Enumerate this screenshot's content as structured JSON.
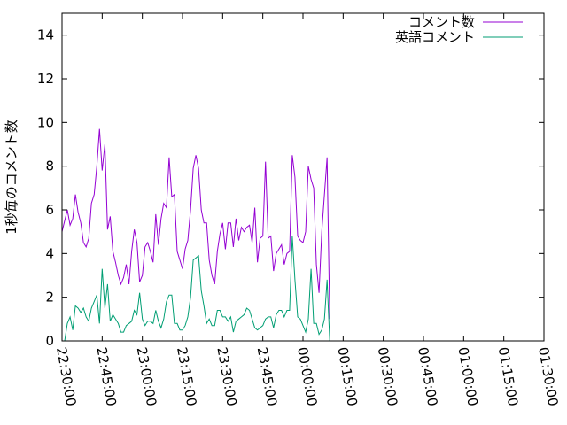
{
  "chart_data": {
    "type": "line",
    "ylabel": "1秒毎のコメント数",
    "xlabel": "",
    "title": "",
    "ylim": [
      0,
      15
    ],
    "xlim": [
      "22:30:00",
      "01:30:00"
    ],
    "grid": false,
    "legend_position": "top-right",
    "y_ticks": [
      "0",
      "2",
      "4",
      "6",
      "8",
      "10",
      "12",
      "14"
    ],
    "y_tick_values": [
      0,
      2,
      4,
      6,
      8,
      10,
      12,
      14
    ],
    "x_ticks": [
      "22:30:00",
      "22:45:00",
      "23:00:00",
      "23:15:00",
      "23:30:00",
      "23:45:00",
      "00:00:00",
      "00:15:00",
      "00:30:00",
      "00:45:00",
      "01:00:00",
      "01:15:00",
      "01:30:00"
    ],
    "x_tick_values": [
      "22:30",
      "22:45",
      "23:00",
      "23:15",
      "23:30",
      "23:45",
      "00:00",
      "00:15",
      "00:30",
      "00:45",
      "01:00",
      "01:15",
      "01:30"
    ],
    "series": [
      {
        "name": "コメント数",
        "color": "#9400d3",
        "points": [
          [
            "22:30",
            5.0
          ],
          [
            "22:31",
            5.5
          ],
          [
            "22:32",
            6.0
          ],
          [
            "22:33",
            5.3
          ],
          [
            "22:34",
            5.6
          ],
          [
            "22:35",
            6.7
          ],
          [
            "22:36",
            5.9
          ],
          [
            "22:37",
            5.4
          ],
          [
            "22:38",
            4.5
          ],
          [
            "22:39",
            4.3
          ],
          [
            "22:40",
            4.7
          ],
          [
            "22:41",
            6.3
          ],
          [
            "22:42",
            6.7
          ],
          [
            "22:43",
            8.0
          ],
          [
            "22:44",
            9.7
          ],
          [
            "22:45",
            7.8
          ],
          [
            "22:46",
            9.0
          ],
          [
            "22:47",
            5.1
          ],
          [
            "22:48",
            5.7
          ],
          [
            "22:49",
            4.1
          ],
          [
            "22:50",
            3.6
          ],
          [
            "22:51",
            3.0
          ],
          [
            "22:52",
            2.6
          ],
          [
            "22:53",
            2.9
          ],
          [
            "22:54",
            3.5
          ],
          [
            "22:55",
            2.6
          ],
          [
            "22:56",
            4.1
          ],
          [
            "22:57",
            5.1
          ],
          [
            "22:58",
            4.5
          ],
          [
            "22:59",
            2.7
          ],
          [
            "23:00",
            3.0
          ],
          [
            "23:01",
            4.3
          ],
          [
            "23:02",
            4.5
          ],
          [
            "23:03",
            4.1
          ],
          [
            "23:04",
            3.6
          ],
          [
            "23:05",
            5.8
          ],
          [
            "23:06",
            4.4
          ],
          [
            "23:07",
            5.6
          ],
          [
            "23:08",
            6.3
          ],
          [
            "23:09",
            6.1
          ],
          [
            "23:10",
            8.4
          ],
          [
            "23:11",
            6.6
          ],
          [
            "23:12",
            6.7
          ],
          [
            "23:13",
            4.1
          ],
          [
            "23:14",
            3.7
          ],
          [
            "23:15",
            3.3
          ],
          [
            "23:16",
            4.2
          ],
          [
            "23:17",
            4.6
          ],
          [
            "23:18",
            6.0
          ],
          [
            "23:19",
            7.9
          ],
          [
            "23:20",
            8.5
          ],
          [
            "23:21",
            7.9
          ],
          [
            "23:22",
            6.0
          ],
          [
            "23:23",
            5.4
          ],
          [
            "23:24",
            5.4
          ],
          [
            "23:25",
            3.7
          ],
          [
            "23:26",
            3.0
          ],
          [
            "23:27",
            2.6
          ],
          [
            "23:28",
            4.1
          ],
          [
            "23:29",
            4.9
          ],
          [
            "23:30",
            5.4
          ],
          [
            "23:31",
            4.2
          ],
          [
            "23:32",
            5.4
          ],
          [
            "23:33",
            5.4
          ],
          [
            "23:34",
            4.3
          ],
          [
            "23:35",
            5.6
          ],
          [
            "23:36",
            4.6
          ],
          [
            "23:37",
            5.2
          ],
          [
            "23:38",
            5.0
          ],
          [
            "23:39",
            5.2
          ],
          [
            "23:40",
            5.3
          ],
          [
            "23:41",
            4.5
          ],
          [
            "23:42",
            6.1
          ],
          [
            "23:43",
            3.6
          ],
          [
            "23:44",
            4.7
          ],
          [
            "23:45",
            4.8
          ],
          [
            "23:46",
            8.2
          ],
          [
            "23:47",
            4.7
          ],
          [
            "23:48",
            4.8
          ],
          [
            "23:49",
            3.2
          ],
          [
            "23:50",
            4.0
          ],
          [
            "23:51",
            4.2
          ],
          [
            "23:52",
            4.4
          ],
          [
            "23:53",
            3.5
          ],
          [
            "23:54",
            4.0
          ],
          [
            "23:55",
            4.1
          ],
          [
            "23:56",
            8.5
          ],
          [
            "23:57",
            7.5
          ],
          [
            "23:58",
            4.8
          ],
          [
            "23:59",
            4.6
          ],
          [
            "00:00",
            4.5
          ],
          [
            "00:01",
            5.0
          ],
          [
            "00:02",
            8.0
          ],
          [
            "00:03",
            7.4
          ],
          [
            "00:04",
            7.0
          ],
          [
            "00:05",
            3.5
          ],
          [
            "00:06",
            2.2
          ],
          [
            "00:07",
            5.0
          ],
          [
            "00:08",
            6.7
          ],
          [
            "00:09",
            8.4
          ],
          [
            "00:10",
            1.0
          ]
        ]
      },
      {
        "name": "英語コメント",
        "color": "#009e73",
        "points": [
          [
            "22:30",
            0.0
          ],
          [
            "22:31",
            0.0
          ],
          [
            "22:32",
            0.8
          ],
          [
            "22:33",
            1.1
          ],
          [
            "22:34",
            0.5
          ],
          [
            "22:35",
            1.6
          ],
          [
            "22:36",
            1.5
          ],
          [
            "22:37",
            1.3
          ],
          [
            "22:38",
            1.5
          ],
          [
            "22:39",
            1.1
          ],
          [
            "22:40",
            0.9
          ],
          [
            "22:41",
            1.5
          ],
          [
            "22:42",
            1.8
          ],
          [
            "22:43",
            2.1
          ],
          [
            "22:44",
            0.8
          ],
          [
            "22:45",
            3.3
          ],
          [
            "22:46",
            1.5
          ],
          [
            "22:47",
            2.6
          ],
          [
            "22:48",
            0.9
          ],
          [
            "22:49",
            1.2
          ],
          [
            "22:50",
            1.0
          ],
          [
            "22:51",
            0.8
          ],
          [
            "22:52",
            0.4
          ],
          [
            "22:53",
            0.4
          ],
          [
            "22:54",
            0.7
          ],
          [
            "22:55",
            0.8
          ],
          [
            "22:56",
            0.9
          ],
          [
            "22:57",
            1.4
          ],
          [
            "22:58",
            1.2
          ],
          [
            "22:59",
            2.2
          ],
          [
            "23:00",
            1.0
          ],
          [
            "23:01",
            0.7
          ],
          [
            "23:02",
            0.9
          ],
          [
            "23:03",
            0.9
          ],
          [
            "23:04",
            0.8
          ],
          [
            "23:05",
            1.4
          ],
          [
            "23:06",
            0.9
          ],
          [
            "23:07",
            0.6
          ],
          [
            "23:08",
            1.0
          ],
          [
            "23:09",
            1.8
          ],
          [
            "23:10",
            2.1
          ],
          [
            "23:11",
            2.1
          ],
          [
            "23:12",
            0.8
          ],
          [
            "23:13",
            0.8
          ],
          [
            "23:14",
            0.5
          ],
          [
            "23:15",
            0.5
          ],
          [
            "23:16",
            0.7
          ],
          [
            "23:17",
            1.1
          ],
          [
            "23:18",
            2.0
          ],
          [
            "23:19",
            3.7
          ],
          [
            "23:20",
            3.8
          ],
          [
            "23:21",
            3.9
          ],
          [
            "23:22",
            2.3
          ],
          [
            "23:23",
            1.6
          ],
          [
            "23:24",
            0.8
          ],
          [
            "23:25",
            1.0
          ],
          [
            "23:26",
            0.7
          ],
          [
            "23:27",
            0.7
          ],
          [
            "23:28",
            1.4
          ],
          [
            "23:29",
            1.4
          ],
          [
            "23:30",
            1.1
          ],
          [
            "23:31",
            1.1
          ],
          [
            "23:32",
            0.9
          ],
          [
            "23:33",
            1.1
          ],
          [
            "23:34",
            0.4
          ],
          [
            "23:35",
            0.9
          ],
          [
            "23:36",
            1.0
          ],
          [
            "23:37",
            1.1
          ],
          [
            "23:38",
            1.2
          ],
          [
            "23:39",
            1.5
          ],
          [
            "23:40",
            1.4
          ],
          [
            "23:41",
            1.0
          ],
          [
            "23:42",
            0.6
          ],
          [
            "23:43",
            0.5
          ],
          [
            "23:44",
            0.6
          ],
          [
            "23:45",
            0.7
          ],
          [
            "23:46",
            1.0
          ],
          [
            "23:47",
            1.1
          ],
          [
            "23:48",
            1.1
          ],
          [
            "23:49",
            0.6
          ],
          [
            "23:50",
            1.2
          ],
          [
            "23:51",
            1.4
          ],
          [
            "23:52",
            1.4
          ],
          [
            "23:53",
            1.1
          ],
          [
            "23:54",
            1.4
          ],
          [
            "23:55",
            1.4
          ],
          [
            "23:56",
            4.8
          ],
          [
            "23:57",
            2.8
          ],
          [
            "23:58",
            1.1
          ],
          [
            "23:59",
            1.0
          ],
          [
            "00:00",
            0.7
          ],
          [
            "00:01",
            0.4
          ],
          [
            "00:02",
            1.0
          ],
          [
            "00:03",
            3.3
          ],
          [
            "00:04",
            0.8
          ],
          [
            "00:05",
            0.8
          ],
          [
            "00:06",
            0.3
          ],
          [
            "00:07",
            0.5
          ],
          [
            "00:08",
            1.0
          ],
          [
            "00:09",
            2.8
          ],
          [
            "00:10",
            0.0
          ]
        ]
      }
    ]
  }
}
